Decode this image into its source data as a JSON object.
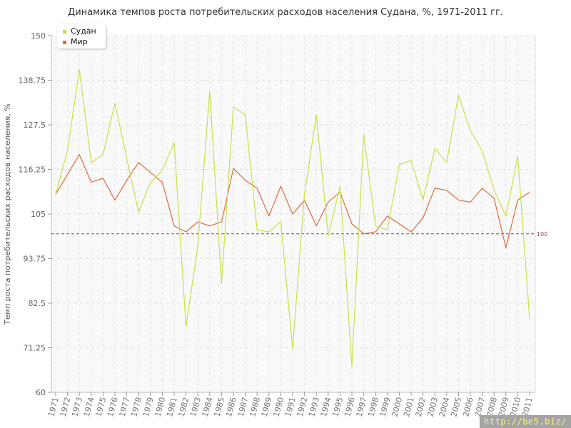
{
  "chart_data": {
    "type": "line",
    "title": "Динамика темпов роста потребительских расходов населения Судана, %, 1971-2011 гг.",
    "xlabel": "",
    "ylabel": "Темп роста потребительских расходов населения, %",
    "categories": [
      "1971",
      "1972",
      "1973",
      "1974",
      "1975",
      "1976",
      "1977",
      "1978",
      "1979",
      "1980",
      "1981",
      "1982",
      "1983",
      "1984",
      "1985",
      "1986",
      "1987",
      "1988",
      "1989",
      "1990",
      "1991",
      "1992",
      "1993",
      "1994",
      "1995",
      "1996",
      "1997",
      "1998",
      "1999",
      "2000",
      "2001",
      "2002",
      "2003",
      "2004",
      "2005",
      "2006",
      "2007",
      "2008",
      "2009",
      "2010",
      "2011"
    ],
    "ylim": [
      60,
      150
    ],
    "yticks": [
      "60",
      "71.25",
      "82.5",
      "93.75",
      "105",
      "116.25",
      "127.5",
      "138.75",
      "150"
    ],
    "reference_line": {
      "value": 100,
      "label": "100",
      "color": "#a0405a"
    },
    "series": [
      {
        "name": "Судан",
        "color": "#c6e04a",
        "values": [
          110,
          121,
          141.5,
          118,
          120,
          133,
          119,
          105.5,
          113,
          116,
          123,
          76.5,
          97,
          136,
          87.5,
          132,
          130,
          101,
          100.5,
          103,
          71,
          110,
          130,
          99.5,
          112,
          66.5,
          125,
          102,
          101,
          117.5,
          118.5,
          108.5,
          121.5,
          118,
          135,
          126,
          121,
          111,
          104.5,
          119.5,
          78.5
        ]
      },
      {
        "name": "Мир",
        "color": "#e06a3a",
        "values": [
          110,
          115,
          120,
          113,
          114,
          108.5,
          113.5,
          118,
          115.5,
          113,
          102,
          100.5,
          103,
          102,
          103,
          116.5,
          113.5,
          111.5,
          104.5,
          112,
          105,
          108.5,
          102,
          108,
          110.5,
          102.5,
          100,
          100.5,
          104.5,
          102.5,
          100.5,
          104,
          111.5,
          111,
          108.5,
          108,
          111.5,
          109,
          96.5,
          108.5,
          110.5
        ]
      }
    ],
    "grid": true,
    "legend_position": "top-left"
  },
  "watermark": "http://be5.biz/"
}
